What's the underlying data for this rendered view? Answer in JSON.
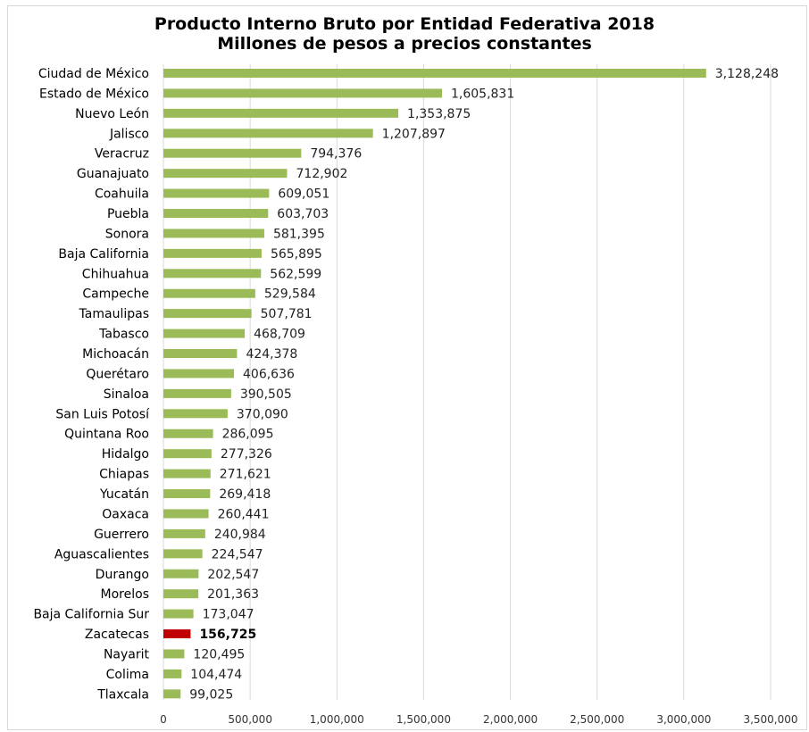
{
  "chart_data": {
    "type": "bar",
    "orientation": "horizontal",
    "title_line1": "Producto Interno Bruto por Entidad Federativa 2018",
    "title_line2": "Millones de pesos a precios constantes",
    "xlabel": "",
    "ylabel": "",
    "xlim": [
      0,
      3500000
    ],
    "grid": true,
    "legend": "none",
    "colors": {
      "bar": "#9bbb59",
      "highlight": "#c00000",
      "grid": "#d9d9d9"
    },
    "highlight_category": "Zacatecas",
    "x_ticks": [
      0,
      500000,
      1000000,
      1500000,
      2000000,
      2500000,
      3000000,
      3500000
    ],
    "x_tick_labels": [
      "0",
      "500,000",
      "1,000,000",
      "1,500,000",
      "2,000,000",
      "2,500,000",
      "3,000,000",
      "3,500,000"
    ],
    "categories": [
      "Ciudad de México",
      "Estado de México",
      "Nuevo León",
      "Jalisco",
      "Veracruz",
      "Guanajuato",
      "Coahuila",
      "Puebla",
      "Sonora",
      "Baja California",
      "Chihuahua",
      "Campeche",
      "Tamaulipas",
      "Tabasco",
      "Michoacán",
      "Querétaro",
      "Sinaloa",
      "San Luis Potosí",
      "Quintana Roo",
      "Hidalgo",
      "Chiapas",
      "Yucatán",
      "Oaxaca",
      "Guerrero",
      "Aguascalientes",
      "Durango",
      "Morelos",
      "Baja California Sur",
      "Zacatecas",
      "Nayarit",
      "Colima",
      "Tlaxcala"
    ],
    "values": [
      3128248,
      1605831,
      1353875,
      1207897,
      794376,
      712902,
      609051,
      603703,
      581395,
      565895,
      562599,
      529584,
      507781,
      468709,
      424378,
      406636,
      390505,
      370090,
      286095,
      277326,
      271621,
      269418,
      260441,
      240984,
      224547,
      202547,
      201363,
      173047,
      156725,
      120495,
      104474,
      99025
    ],
    "value_labels": [
      "3,128,248",
      "1,605,831",
      "1,353,875",
      "1,207,897",
      "794,376",
      "712,902",
      "609,051",
      "603,703",
      "581,395",
      "565,895",
      "562,599",
      "529,584",
      "507,781",
      "468,709",
      "424,378",
      "406,636",
      "390,505",
      "370,090",
      "286,095",
      "277,326",
      "271,621",
      "269,418",
      "260,441",
      "240,984",
      "224,547",
      "202,547",
      "201,363",
      "173,047",
      "156,725",
      "120,495",
      "104,474",
      "99,025"
    ]
  }
}
